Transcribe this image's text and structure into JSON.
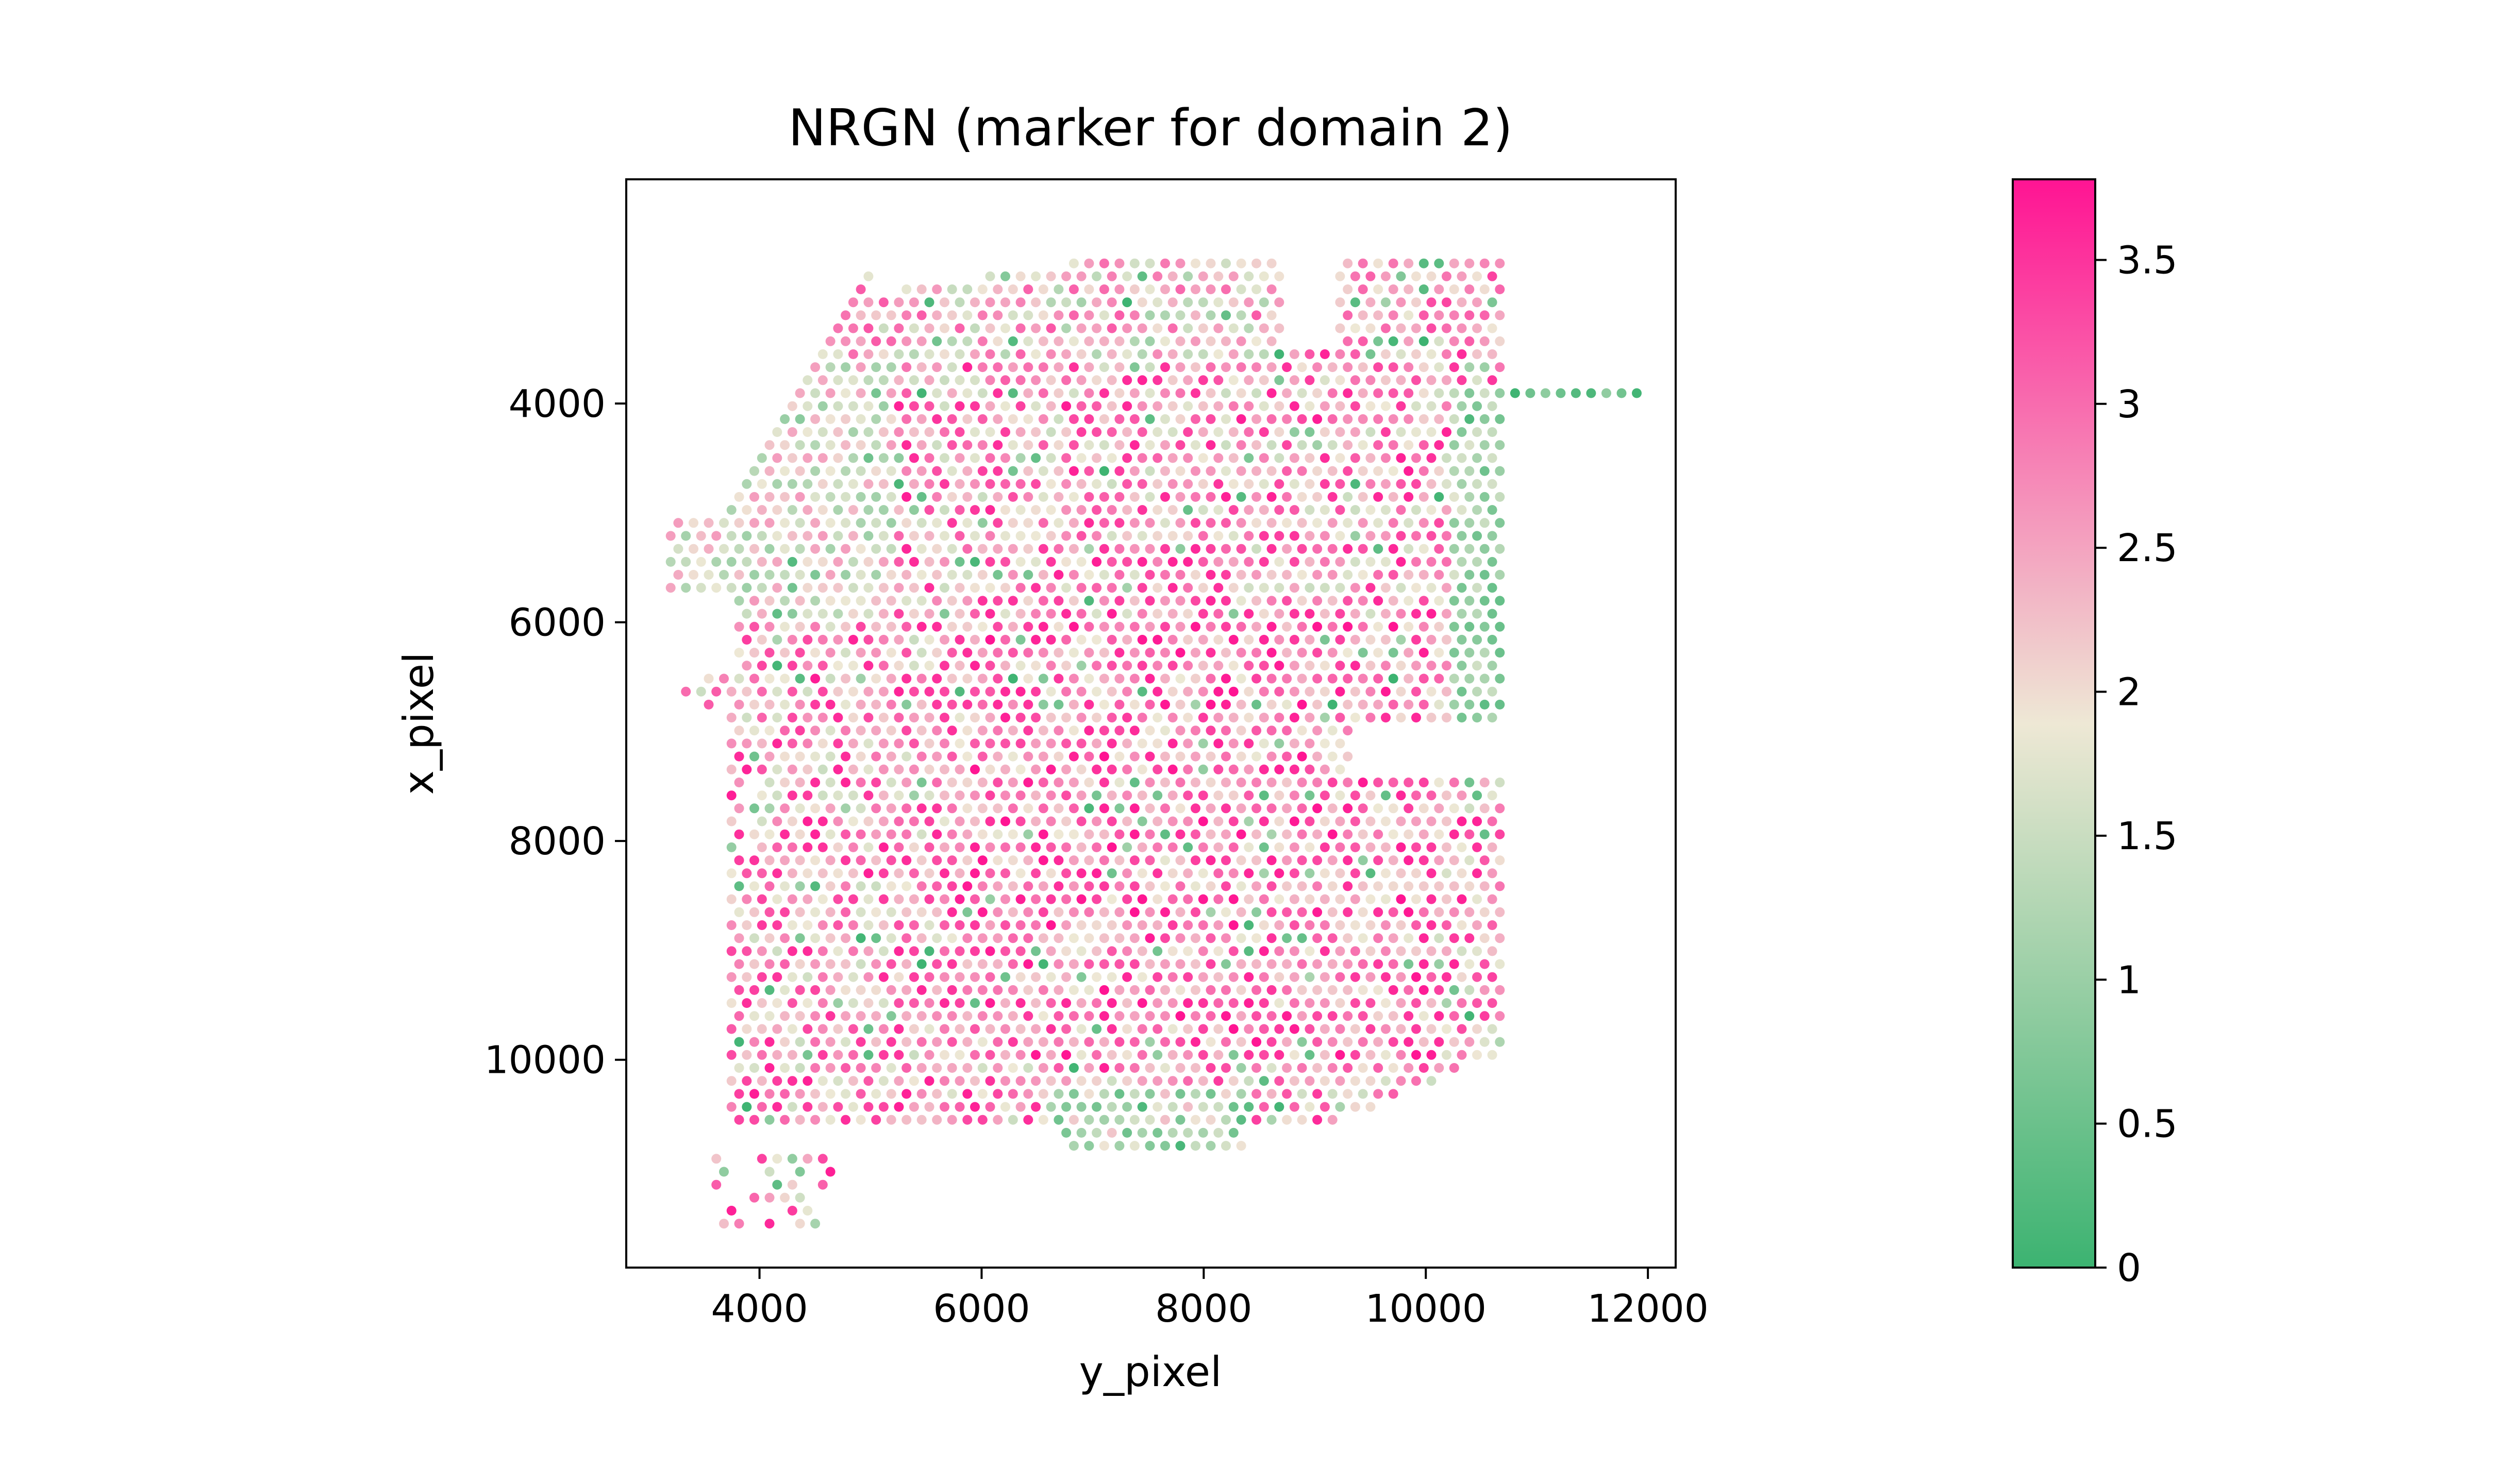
{
  "chart_data": {
    "type": "scatter",
    "title": "NRGN (marker for domain 2)",
    "xlabel": "y_pixel",
    "ylabel": "x_pixel",
    "xlim": [
      2800,
      12250
    ],
    "ylim": [
      11900,
      1950
    ],
    "y_inverted": true,
    "x_ticks": [
      4000,
      6000,
      8000,
      10000,
      12000
    ],
    "x_tick_labels": [
      "4000",
      "6000",
      "8000",
      "10000",
      "12000"
    ],
    "y_ticks": [
      4000,
      6000,
      8000,
      10000
    ],
    "y_tick_labels": [
      "4000",
      "6000",
      "8000",
      "10000"
    ],
    "colorbar": {
      "min": 0,
      "max": 3.78,
      "ticks": [
        0,
        0.5,
        1,
        1.5,
        2,
        2.5,
        3,
        3.5
      ],
      "tick_labels": [
        "0",
        "0.5",
        "1",
        "1.5",
        "2",
        "2.5",
        "3",
        "3.5"
      ],
      "colors": [
        "#3cb371",
        "#eee8d5",
        "#ff1493"
      ]
    },
    "spot_spacing": 137,
    "tissue_region": {
      "description_free": true,
      "main_y_range": [
        3500,
        11900
      ],
      "main_x_range": [
        2600,
        10800
      ]
    },
    "grid": false,
    "legend": "none"
  }
}
